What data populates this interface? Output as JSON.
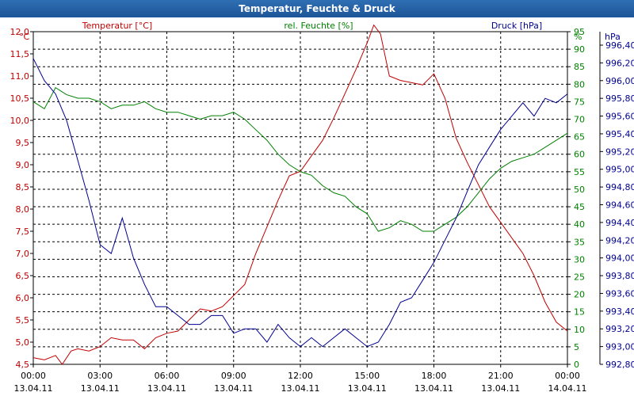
{
  "window": {
    "title": "Temperatur, Feuchte & Druck"
  },
  "chart_data": {
    "type": "line",
    "title": "Temperatur, Feuchte & Druck",
    "grid": true,
    "x_ticks": [
      {
        "time": "00:00",
        "date": "13.04.11"
      },
      {
        "time": "03:00",
        "date": "13.04.11"
      },
      {
        "time": "06:00",
        "date": "13.04.11"
      },
      {
        "time": "09:00",
        "date": "13.04.11"
      },
      {
        "time": "12:00",
        "date": "13.04.11"
      },
      {
        "time": "15:00",
        "date": "13.04.11"
      },
      {
        "time": "18:00",
        "date": "13.04.11"
      },
      {
        "time": "21:00",
        "date": "13.04.11"
      },
      {
        "time": "00:00",
        "date": "14.04.11"
      }
    ],
    "x_range_hours": [
      0,
      24
    ],
    "axes": {
      "temperature": {
        "unit": "°C",
        "min": 4.5,
        "max": 12.0,
        "ticks": [
          "4,5",
          "5,0",
          "5,5",
          "6,0",
          "6,5",
          "7,0",
          "7,5",
          "8,0",
          "8,5",
          "9,0",
          "9,5",
          "10,0",
          "10,5",
          "11,0",
          "11,5",
          "12,0"
        ]
      },
      "humidity": {
        "unit": "%",
        "min": 0,
        "max": 95,
        "ticks": [
          "0",
          "5",
          "10",
          "15",
          "20",
          "25",
          "30",
          "35",
          "40",
          "45",
          "50",
          "55",
          "60",
          "65",
          "70",
          "75",
          "80",
          "85",
          "90",
          "95"
        ]
      },
      "pressure": {
        "unit": "hPa",
        "min": 992.8,
        "max": 996.4,
        "ticks": [
          "992,80",
          "993,00",
          "993,20",
          "993,40",
          "993,60",
          "993,80",
          "994,00",
          "994,20",
          "994,40",
          "994,60",
          "994,80",
          "995,00",
          "995,20",
          "995,40",
          "995,60",
          "995,80",
          "996,00",
          "996,20",
          "996,40"
        ]
      }
    },
    "series": [
      {
        "name": "Temperatur [°C]",
        "color": "#c00000",
        "axis": "temperature",
        "x": [
          0,
          0.5,
          1,
          1.3,
          1.7,
          2,
          2.5,
          3,
          3.5,
          4,
          4.5,
          5,
          5.5,
          6,
          6.5,
          7,
          7.5,
          8,
          8.5,
          9,
          9.5,
          10,
          10.5,
          11,
          11.5,
          12,
          12.5,
          13,
          13.5,
          14,
          14.5,
          15,
          15.3,
          15.6,
          16,
          16.5,
          17,
          17.5,
          18,
          18.5,
          19,
          19.5,
          20,
          20.5,
          21,
          21.5,
          22,
          22.5,
          23,
          23.5,
          24
        ],
        "values": [
          4.65,
          4.6,
          4.7,
          4.5,
          4.8,
          4.85,
          4.8,
          4.9,
          5.1,
          5.05,
          5.05,
          4.85,
          5.1,
          5.2,
          5.25,
          5.5,
          5.75,
          5.7,
          5.8,
          6.05,
          6.3,
          7.0,
          7.6,
          8.2,
          8.75,
          8.85,
          9.2,
          9.55,
          10.05,
          10.6,
          11.15,
          11.75,
          12.15,
          11.95,
          11.0,
          10.9,
          10.85,
          10.8,
          11.05,
          10.5,
          9.6,
          9.05,
          8.55,
          8.05,
          7.7,
          7.35,
          7.0,
          6.5,
          5.9,
          5.45,
          5.25
        ]
      },
      {
        "name": "rel. Feuchte [%]",
        "color": "#008000",
        "axis": "humidity",
        "x": [
          0,
          0.5,
          1,
          1.5,
          2,
          2.5,
          3,
          3.5,
          4,
          4.5,
          5,
          5.5,
          6,
          6.5,
          7,
          7.5,
          8,
          8.5,
          9,
          9.5,
          10,
          10.5,
          11,
          11.5,
          12,
          12.5,
          13,
          13.5,
          14,
          14.5,
          15,
          15.5,
          16,
          16.5,
          17,
          17.5,
          18,
          18.5,
          19,
          19.5,
          20,
          20.5,
          21,
          21.5,
          22,
          22.5,
          23,
          23.5,
          24
        ],
        "values": [
          75,
          73,
          79,
          77,
          76,
          76,
          75,
          73,
          74,
          74,
          75,
          73,
          72,
          72,
          71,
          70,
          71,
          71,
          72,
          70,
          67,
          64,
          60,
          57,
          55,
          54,
          51,
          49,
          48,
          45,
          43,
          38,
          39,
          41,
          40,
          38,
          38,
          40,
          42,
          45,
          49,
          53,
          56,
          58,
          59,
          60,
          62,
          64,
          66
        ]
      },
      {
        "name": "Druck [hPa]",
        "color": "#000090",
        "axis": "pressure",
        "x": [
          0,
          0.5,
          1,
          1.5,
          2,
          2.5,
          3,
          3.5,
          4,
          4.5,
          5,
          5.5,
          6,
          6.5,
          7,
          7.5,
          8,
          8.5,
          9,
          9.5,
          10,
          10.5,
          11,
          11.5,
          12,
          12.5,
          13,
          13.5,
          14,
          14.5,
          15,
          15.5,
          16,
          16.5,
          17,
          17.5,
          18,
          18.5,
          19,
          19.5,
          20,
          20.5,
          21,
          21.5,
          22,
          22.5,
          23,
          23.5,
          24
        ],
        "values": [
          996.25,
          996.0,
          995.85,
          995.55,
          995.1,
          994.65,
          994.15,
          994.05,
          994.45,
          994.0,
          993.7,
          993.45,
          993.45,
          993.35,
          993.25,
          993.25,
          993.35,
          993.35,
          993.15,
          993.2,
          993.2,
          993.05,
          993.25,
          993.1,
          993.0,
          993.1,
          993.0,
          993.1,
          993.2,
          993.1,
          993.0,
          993.05,
          993.25,
          993.5,
          993.55,
          993.75,
          993.95,
          994.2,
          994.45,
          994.75,
          995.05,
          995.25,
          995.45,
          995.6,
          995.75,
          995.6,
          995.8,
          995.75,
          995.85
        ]
      }
    ]
  }
}
